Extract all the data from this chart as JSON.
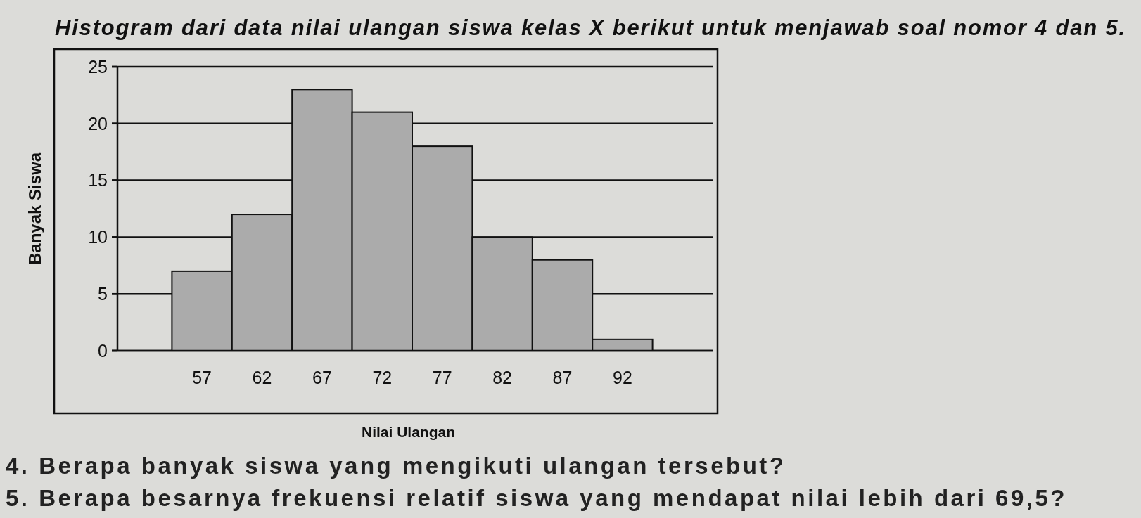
{
  "chart_data": {
    "type": "histogram",
    "title": "Histogram dari data nilai ulangan siswa kelas X berikut untuk menjawab soal nomor 4 dan 5.",
    "xlabel": "Nilai Ulangan",
    "ylabel": "Banyak Siswa",
    "bins": [
      54.5,
      59.5,
      64.5,
      69.5,
      74.5,
      79.5,
      84.5,
      89.5,
      94.5
    ],
    "values": [
      7,
      12,
      23,
      21,
      18,
      10,
      8,
      1
    ],
    "color": "#ababab",
    "xlim": [
      49.5,
      99.5
    ],
    "xticks": [
      57,
      62,
      67,
      72,
      77,
      82,
      87,
      92
    ],
    "ylim": [
      0,
      25
    ],
    "yticks": [
      0,
      5,
      10,
      15,
      20,
      25
    ],
    "grid": "y",
    "annotations": [
      "4. Berapa banyak siswa yang mengikuti ulangan tersebut?",
      "5. Berapa besarnya frekuensi relatif siswa yang mendapat nilai lebih dari 69,5?"
    ]
  }
}
